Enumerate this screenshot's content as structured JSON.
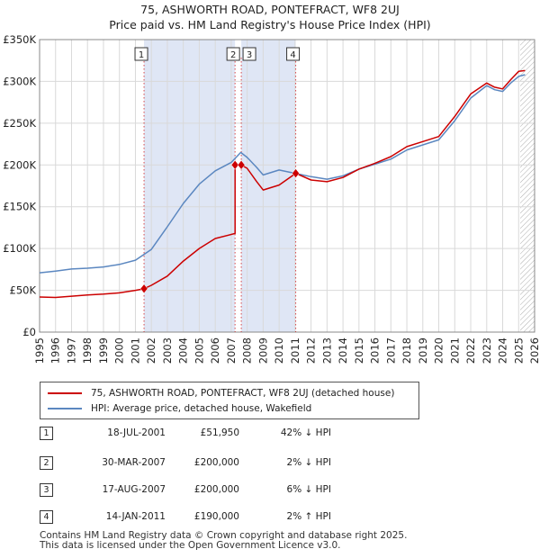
{
  "title": {
    "line1": "75, ASHWORTH ROAD, PONTEFRACT, WF8 2UJ",
    "line2": "Price paid vs. HM Land Registry's House Price Index (HPI)"
  },
  "colors": {
    "red": "#cc0000",
    "blue": "#5b87c0",
    "shade": "#dfe6f5",
    "grid": "#d9d9d9"
  },
  "chart_data": {
    "type": "line",
    "xlabel": "",
    "ylabel": "",
    "xlim": [
      1995,
      2026
    ],
    "ylim": [
      0,
      350000
    ],
    "grid": true,
    "x_ticks": [
      "1995",
      "1996",
      "1997",
      "1998",
      "1999",
      "2000",
      "2001",
      "2002",
      "2003",
      "2004",
      "2005",
      "2006",
      "2007",
      "2008",
      "2009",
      "2010",
      "2011",
      "2012",
      "2013",
      "2014",
      "2015",
      "2016",
      "2017",
      "2018",
      "2019",
      "2020",
      "2021",
      "2022",
      "2023",
      "2024",
      "2025",
      "2026"
    ],
    "y_ticks": [
      {
        "value": 0,
        "label": "£0"
      },
      {
        "value": 50000,
        "label": "£50K"
      },
      {
        "value": 100000,
        "label": "£100K"
      },
      {
        "value": 150000,
        "label": "£150K"
      },
      {
        "value": 200000,
        "label": "£200K"
      },
      {
        "value": 250000,
        "label": "£250K"
      },
      {
        "value": 300000,
        "label": "£300K"
      },
      {
        "value": 350000,
        "label": "£350K"
      }
    ],
    "shaded_ranges": [
      [
        2001.54,
        2007.24
      ],
      [
        2007.63,
        2011.04
      ]
    ],
    "hatched_from": 2025.1,
    "series": [
      {
        "name": "75, ASHWORTH ROAD, PONTEFRACT, WF8 2UJ (detached house)",
        "color": "#cc0000",
        "points": [
          [
            1995,
            42000
          ],
          [
            1996,
            41500
          ],
          [
            1997,
            43000
          ],
          [
            1998,
            44500
          ],
          [
            1999,
            45500
          ],
          [
            2000,
            47000
          ],
          [
            2001,
            50000
          ],
          [
            2001.54,
            51950
          ],
          [
            2002,
            56000
          ],
          [
            2003,
            67000
          ],
          [
            2004,
            85000
          ],
          [
            2005,
            100000
          ],
          [
            2006,
            112000
          ],
          [
            2007.24,
            118000
          ],
          [
            2007.24,
            200000
          ],
          [
            2007.63,
            200000
          ],
          [
            2008,
            196000
          ],
          [
            2008.6,
            180000
          ],
          [
            2009,
            170000
          ],
          [
            2010,
            176000
          ],
          [
            2011.04,
            190000
          ],
          [
            2012,
            182000
          ],
          [
            2013,
            180000
          ],
          [
            2014,
            185000
          ],
          [
            2015,
            195000
          ],
          [
            2016,
            202000
          ],
          [
            2017,
            210000
          ],
          [
            2018,
            222000
          ],
          [
            2019,
            228000
          ],
          [
            2020,
            234000
          ],
          [
            2021,
            258000
          ],
          [
            2022,
            285000
          ],
          [
            2023,
            298000
          ],
          [
            2023.5,
            293000
          ],
          [
            2024,
            291000
          ],
          [
            2024.5,
            302000
          ],
          [
            2025,
            312000
          ],
          [
            2025.4,
            313000
          ]
        ]
      },
      {
        "name": "HPI: Average price, detached house, Wakefield",
        "color": "#5b87c0",
        "points": [
          [
            1995,
            71000
          ],
          [
            1996,
            73000
          ],
          [
            1997,
            75500
          ],
          [
            1998,
            76500
          ],
          [
            1999,
            78000
          ],
          [
            2000,
            81000
          ],
          [
            2001,
            86000
          ],
          [
            2002,
            99000
          ],
          [
            2003,
            126000
          ],
          [
            2004,
            154000
          ],
          [
            2005,
            177000
          ],
          [
            2006,
            193000
          ],
          [
            2007,
            203000
          ],
          [
            2007.6,
            215000
          ],
          [
            2008,
            209000
          ],
          [
            2008.6,
            197000
          ],
          [
            2009,
            188000
          ],
          [
            2010,
            194000
          ],
          [
            2011,
            190000
          ],
          [
            2012,
            186000
          ],
          [
            2013,
            183000
          ],
          [
            2014,
            187000
          ],
          [
            2015,
            195000
          ],
          [
            2016,
            201000
          ],
          [
            2017,
            207000
          ],
          [
            2018,
            218000
          ],
          [
            2019,
            224000
          ],
          [
            2020,
            230000
          ],
          [
            2021,
            253000
          ],
          [
            2022,
            280000
          ],
          [
            2023,
            295000
          ],
          [
            2023.5,
            290000
          ],
          [
            2024,
            288000
          ],
          [
            2024.5,
            298000
          ],
          [
            2025,
            306000
          ],
          [
            2025.4,
            308000
          ]
        ]
      }
    ],
    "transactions": [
      {
        "label": "1",
        "date": "18-JUL-2001",
        "x": 2001.54,
        "price": 51950,
        "price_text": "£51,950",
        "hpi": "42% ↓ HPI"
      },
      {
        "label": "2",
        "date": "30-MAR-2007",
        "x": 2007.24,
        "price": 200000,
        "price_text": "£200,000",
        "hpi": "2% ↓ HPI"
      },
      {
        "label": "3",
        "date": "17-AUG-2007",
        "x": 2007.63,
        "price": 200000,
        "price_text": "£200,000",
        "hpi": "6% ↓ HPI"
      },
      {
        "label": "4",
        "date": "14-JAN-2011",
        "x": 2011.04,
        "price": 190000,
        "price_text": "£190,000",
        "hpi": "2% ↑ HPI"
      }
    ]
  },
  "legend": {
    "red_label": "75, ASHWORTH ROAD, PONTEFRACT, WF8 2UJ (detached house)",
    "blue_label": "HPI: Average price, detached house, Wakefield"
  },
  "footer": {
    "line1": "Contains HM Land Registry data © Crown copyright and database right 2025.",
    "line2": "This data is licensed under the Open Government Licence v3.0."
  }
}
